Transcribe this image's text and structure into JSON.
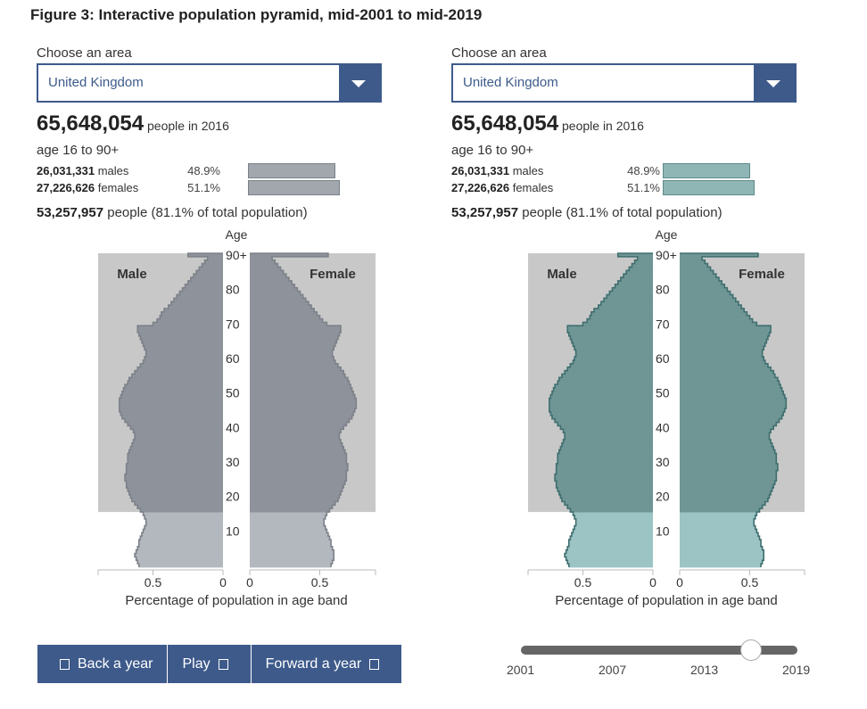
{
  "title": "Figure 3: Interactive population pyramid, mid-2001 to mid-2019",
  "panels": [
    {
      "choose_label": "Choose an area",
      "area": "United Kingdom",
      "total_population": "65,648,054",
      "total_suffix": "people in 2016",
      "age_range": "age 16 to 90+",
      "males_count": "26,031,331",
      "males_label": "males",
      "males_pct": "48.9%",
      "females_count": "27,226,626",
      "females_label": "females",
      "females_pct": "51.1%",
      "selected_count": "53,257,957",
      "selected_suffix": "people (81.1% of total population)"
    },
    {
      "choose_label": "Choose an area",
      "area": "United Kingdom",
      "total_population": "65,648,054",
      "total_suffix": "people in 2016",
      "age_range": "age 16 to 90+",
      "males_count": "26,031,331",
      "males_label": "males",
      "males_pct": "48.9%",
      "females_count": "27,226,626",
      "females_label": "females",
      "females_pct": "51.1%",
      "selected_count": "53,257,957",
      "selected_suffix": "people (81.1% of total population)"
    }
  ],
  "controls": {
    "back_label": "Back a year",
    "play_label": "Play",
    "forward_label": "Forward a year"
  },
  "timeline": {
    "years": [
      "2001",
      "2007",
      "2013",
      "2019"
    ],
    "start": 2001,
    "end": 2019,
    "selected": 2016
  },
  "colors": {
    "left_fill": "#8e939b",
    "left_light": "#b3b8bf",
    "left_stroke": "#7c8189",
    "right_fill": "#6f9595",
    "right_light": "#9cc4c4",
    "right_stroke": "#3f6e6e",
    "highlight_bg": "#c8c8c8",
    "accent": "#3d5a8a"
  },
  "chart_data": [
    {
      "type": "bar",
      "orientation": "horizontal-pyramid",
      "area": "United Kingdom",
      "year": 2016,
      "highlight_age_range": [
        16,
        90
      ],
      "ylabel": "Age",
      "xlabel": "Percentage of population in age band",
      "x_ticks": [
        "0.5",
        "0",
        "0",
        "0.5"
      ],
      "y_ticks": [
        "10",
        "20",
        "30",
        "40",
        "50",
        "60",
        "70",
        "80",
        "90+"
      ],
      "male_label": "Male",
      "female_label": "Female",
      "xlim": [
        0,
        0.8
      ],
      "ages": [
        0,
        1,
        2,
        3,
        4,
        5,
        6,
        7,
        8,
        9,
        10,
        11,
        12,
        13,
        14,
        15,
        16,
        17,
        18,
        19,
        20,
        21,
        22,
        23,
        24,
        25,
        26,
        27,
        28,
        29,
        30,
        31,
        32,
        33,
        34,
        35,
        36,
        37,
        38,
        39,
        40,
        41,
        42,
        43,
        44,
        45,
        46,
        47,
        48,
        49,
        50,
        51,
        52,
        53,
        54,
        55,
        56,
        57,
        58,
        59,
        60,
        61,
        62,
        63,
        64,
        65,
        66,
        67,
        68,
        69,
        70,
        71,
        72,
        73,
        74,
        75,
        76,
        77,
        78,
        79,
        80,
        81,
        82,
        83,
        84,
        85,
        86,
        87,
        88,
        89,
        90
      ],
      "series": [
        {
          "name": "Male",
          "values": [
            0.6,
            0.61,
            0.62,
            0.63,
            0.62,
            0.61,
            0.6,
            0.6,
            0.59,
            0.58,
            0.57,
            0.56,
            0.55,
            0.55,
            0.56,
            0.57,
            0.59,
            0.61,
            0.63,
            0.65,
            0.66,
            0.67,
            0.68,
            0.69,
            0.69,
            0.7,
            0.7,
            0.69,
            0.69,
            0.69,
            0.68,
            0.68,
            0.68,
            0.67,
            0.66,
            0.65,
            0.64,
            0.63,
            0.63,
            0.64,
            0.66,
            0.68,
            0.7,
            0.72,
            0.73,
            0.74,
            0.74,
            0.74,
            0.74,
            0.73,
            0.72,
            0.71,
            0.7,
            0.68,
            0.67,
            0.65,
            0.63,
            0.61,
            0.59,
            0.57,
            0.56,
            0.55,
            0.55,
            0.56,
            0.57,
            0.58,
            0.59,
            0.6,
            0.61,
            0.61,
            0.5,
            0.47,
            0.45,
            0.44,
            0.42,
            0.39,
            0.37,
            0.35,
            0.33,
            0.31,
            0.29,
            0.27,
            0.25,
            0.23,
            0.21,
            0.19,
            0.17,
            0.15,
            0.13,
            0.11,
            0.25
          ]
        },
        {
          "name": "Female",
          "values": [
            0.58,
            0.59,
            0.6,
            0.6,
            0.6,
            0.59,
            0.58,
            0.58,
            0.57,
            0.56,
            0.55,
            0.54,
            0.53,
            0.53,
            0.54,
            0.55,
            0.57,
            0.59,
            0.61,
            0.63,
            0.64,
            0.65,
            0.66,
            0.67,
            0.68,
            0.69,
            0.69,
            0.69,
            0.7,
            0.7,
            0.69,
            0.69,
            0.69,
            0.68,
            0.67,
            0.66,
            0.65,
            0.64,
            0.64,
            0.65,
            0.67,
            0.69,
            0.71,
            0.73,
            0.74,
            0.75,
            0.76,
            0.76,
            0.76,
            0.75,
            0.74,
            0.73,
            0.72,
            0.71,
            0.7,
            0.68,
            0.67,
            0.65,
            0.63,
            0.61,
            0.6,
            0.59,
            0.59,
            0.6,
            0.61,
            0.62,
            0.63,
            0.64,
            0.65,
            0.65,
            0.55,
            0.52,
            0.5,
            0.48,
            0.46,
            0.44,
            0.42,
            0.4,
            0.38,
            0.36,
            0.34,
            0.32,
            0.3,
            0.28,
            0.26,
            0.24,
            0.22,
            0.2,
            0.18,
            0.16,
            0.56
          ]
        }
      ]
    },
    {
      "type": "bar",
      "orientation": "horizontal-pyramid",
      "area": "United Kingdom",
      "year": 2016,
      "highlight_age_range": [
        16,
        90
      ],
      "ylabel": "Age",
      "xlabel": "Percentage of population in age band",
      "x_ticks": [
        "0.5",
        "0",
        "0",
        "0.5"
      ],
      "y_ticks": [
        "10",
        "20",
        "30",
        "40",
        "50",
        "60",
        "70",
        "80",
        "90+"
      ],
      "male_label": "Male",
      "female_label": "Female",
      "xlim": [
        0,
        0.8
      ],
      "ages": [
        0,
        1,
        2,
        3,
        4,
        5,
        6,
        7,
        8,
        9,
        10,
        11,
        12,
        13,
        14,
        15,
        16,
        17,
        18,
        19,
        20,
        21,
        22,
        23,
        24,
        25,
        26,
        27,
        28,
        29,
        30,
        31,
        32,
        33,
        34,
        35,
        36,
        37,
        38,
        39,
        40,
        41,
        42,
        43,
        44,
        45,
        46,
        47,
        48,
        49,
        50,
        51,
        52,
        53,
        54,
        55,
        56,
        57,
        58,
        59,
        60,
        61,
        62,
        63,
        64,
        65,
        66,
        67,
        68,
        69,
        70,
        71,
        72,
        73,
        74,
        75,
        76,
        77,
        78,
        79,
        80,
        81,
        82,
        83,
        84,
        85,
        86,
        87,
        88,
        89,
        90
      ],
      "series": [
        {
          "name": "Male",
          "values": [
            0.6,
            0.61,
            0.62,
            0.63,
            0.62,
            0.61,
            0.6,
            0.6,
            0.59,
            0.58,
            0.57,
            0.56,
            0.55,
            0.55,
            0.56,
            0.57,
            0.59,
            0.61,
            0.63,
            0.65,
            0.66,
            0.67,
            0.68,
            0.69,
            0.69,
            0.7,
            0.7,
            0.69,
            0.69,
            0.69,
            0.68,
            0.68,
            0.68,
            0.67,
            0.66,
            0.65,
            0.64,
            0.63,
            0.63,
            0.64,
            0.66,
            0.68,
            0.7,
            0.72,
            0.73,
            0.74,
            0.74,
            0.74,
            0.74,
            0.73,
            0.72,
            0.71,
            0.7,
            0.68,
            0.67,
            0.65,
            0.63,
            0.61,
            0.59,
            0.57,
            0.56,
            0.55,
            0.55,
            0.56,
            0.57,
            0.58,
            0.59,
            0.6,
            0.61,
            0.61,
            0.5,
            0.47,
            0.45,
            0.44,
            0.42,
            0.39,
            0.37,
            0.35,
            0.33,
            0.31,
            0.29,
            0.27,
            0.25,
            0.23,
            0.21,
            0.19,
            0.17,
            0.15,
            0.13,
            0.11,
            0.25
          ]
        },
        {
          "name": "Female",
          "values": [
            0.58,
            0.59,
            0.6,
            0.6,
            0.6,
            0.59,
            0.58,
            0.58,
            0.57,
            0.56,
            0.55,
            0.54,
            0.53,
            0.53,
            0.54,
            0.55,
            0.57,
            0.59,
            0.61,
            0.63,
            0.64,
            0.65,
            0.66,
            0.67,
            0.68,
            0.69,
            0.69,
            0.69,
            0.7,
            0.7,
            0.69,
            0.69,
            0.69,
            0.68,
            0.67,
            0.66,
            0.65,
            0.64,
            0.64,
            0.65,
            0.67,
            0.69,
            0.71,
            0.73,
            0.74,
            0.75,
            0.76,
            0.76,
            0.76,
            0.75,
            0.74,
            0.73,
            0.72,
            0.71,
            0.7,
            0.68,
            0.67,
            0.65,
            0.63,
            0.61,
            0.6,
            0.59,
            0.59,
            0.6,
            0.61,
            0.62,
            0.63,
            0.64,
            0.65,
            0.65,
            0.55,
            0.52,
            0.5,
            0.48,
            0.46,
            0.44,
            0.42,
            0.4,
            0.38,
            0.36,
            0.34,
            0.32,
            0.3,
            0.28,
            0.26,
            0.24,
            0.22,
            0.2,
            0.18,
            0.16,
            0.56
          ]
        }
      ]
    }
  ]
}
